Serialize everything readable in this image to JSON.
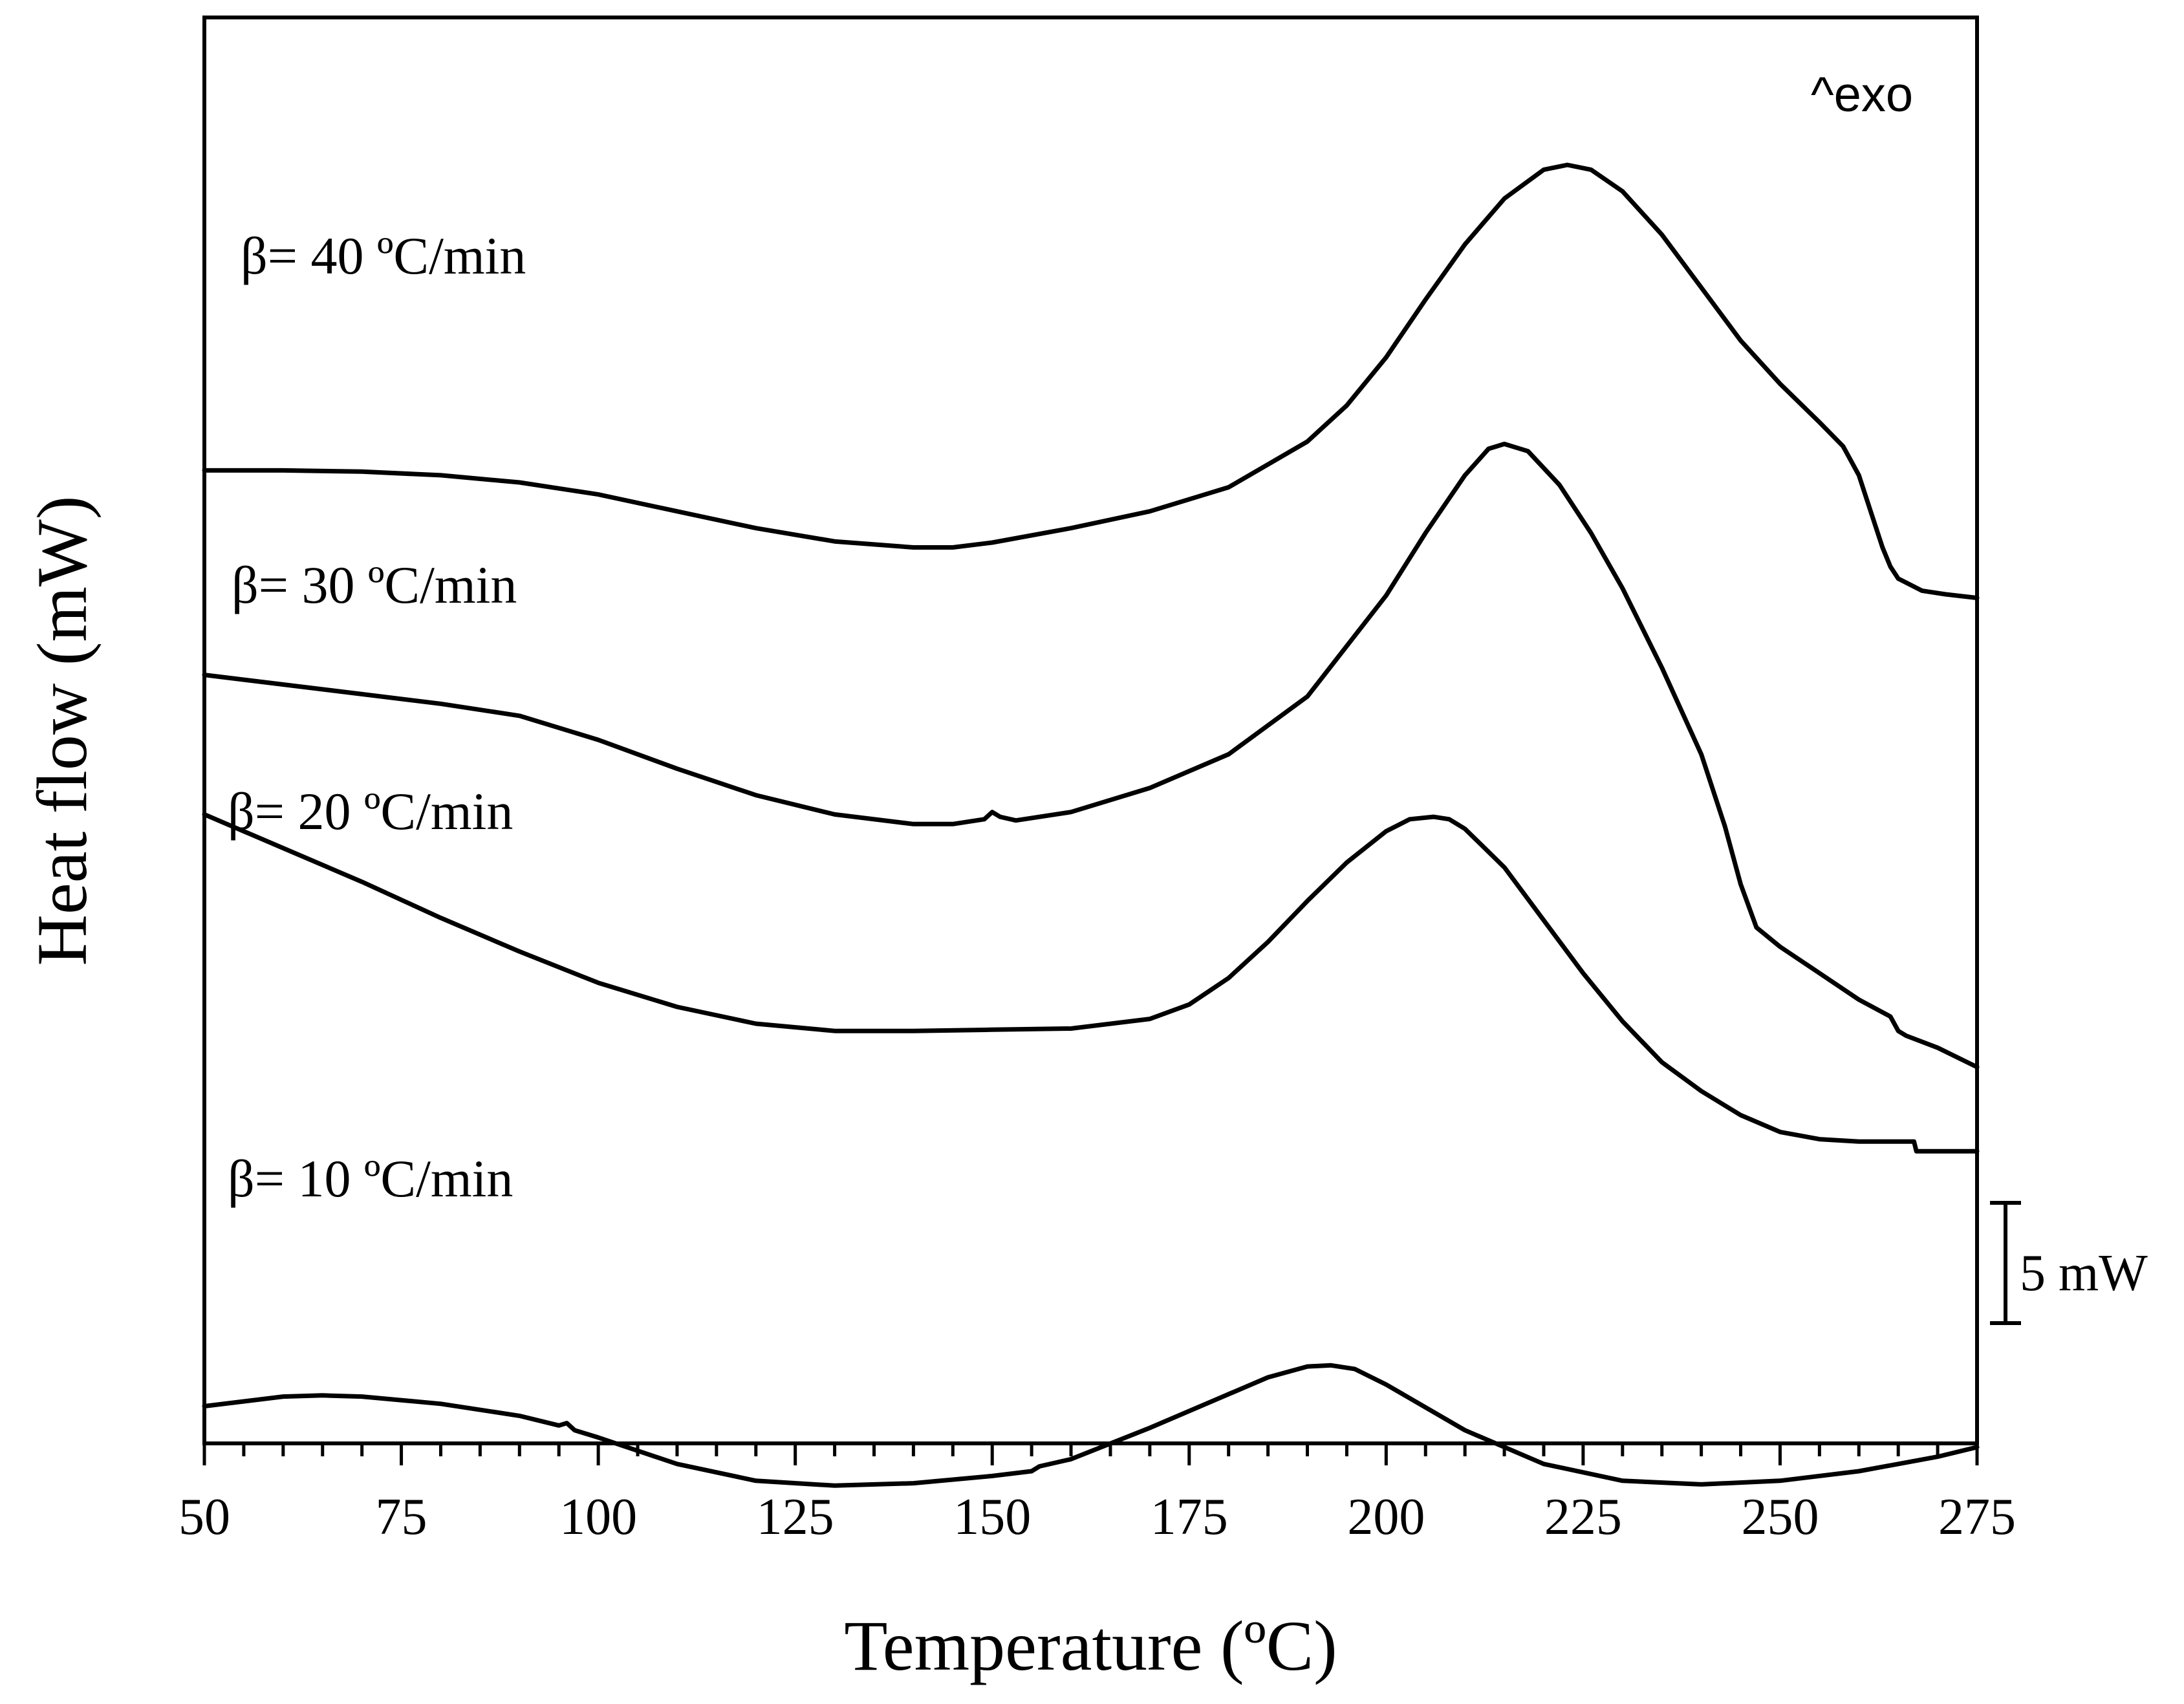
{
  "chart_data": {
    "type": "line",
    "title": "",
    "xlabel": "Temperature (ºC)",
    "ylabel": "Heat flow (mW)",
    "xlim": [
      50,
      275
    ],
    "x_ticks": [
      50,
      75,
      100,
      125,
      150,
      175,
      200,
      225,
      250,
      275
    ],
    "x_minor_step": 5,
    "y_ticks_shown": false,
    "grid": false,
    "annotation": "^exo",
    "scale_bar": {
      "label": "5 mW",
      "value_mW": 5
    },
    "series": [
      {
        "name": "β= 40 ºC/min",
        "label": "β= 40 ºC/min",
        "x": [
          50,
          60,
          70,
          80,
          90,
          100,
          110,
          120,
          130,
          140,
          145,
          150,
          160,
          170,
          180,
          190,
          195,
          200,
          205,
          210,
          215,
          220,
          223,
          226,
          230,
          235,
          240,
          245,
          250,
          255,
          258,
          260,
          261,
          262,
          263,
          264,
          265,
          268,
          271,
          275
        ],
        "y": [
          24.8,
          24.8,
          24.75,
          24.6,
          24.3,
          23.8,
          23.1,
          22.4,
          21.85,
          21.6,
          21.6,
          21.8,
          22.4,
          23.1,
          24.1,
          26.0,
          27.5,
          29.5,
          31.9,
          34.2,
          36.1,
          37.3,
          37.5,
          37.3,
          36.4,
          34.6,
          32.4,
          30.2,
          28.4,
          26.8,
          25.8,
          24.6,
          23.6,
          22.6,
          21.6,
          20.8,
          20.3,
          19.8,
          19.65,
          19.5
        ]
      },
      {
        "name": "β= 30 ºC/min",
        "label": "β= 30 ºC/min",
        "x": [
          50,
          60,
          70,
          80,
          90,
          100,
          110,
          120,
          130,
          140,
          145,
          149,
          150,
          151,
          153,
          160,
          170,
          180,
          190,
          200,
          205,
          210,
          213,
          215,
          218,
          222,
          226,
          230,
          235,
          240,
          243,
          245,
          247,
          250,
          255,
          260,
          264,
          265,
          266,
          270,
          275
        ],
        "y": [
          16.3,
          15.9,
          15.5,
          15.1,
          14.6,
          13.6,
          12.4,
          11.3,
          10.5,
          10.1,
          10.1,
          10.3,
          10.6,
          10.4,
          10.25,
          10.6,
          11.6,
          13.0,
          15.4,
          19.6,
          22.2,
          24.6,
          25.7,
          25.9,
          25.6,
          24.2,
          22.2,
          19.9,
          16.6,
          13.0,
          10.0,
          7.6,
          5.8,
          5.0,
          3.9,
          2.8,
          2.1,
          1.5,
          1.3,
          0.8,
          0.0
        ]
      },
      {
        "name": "β= 20 ºC/min",
        "label": "β= 20 ºC/min",
        "x": [
          50,
          60,
          70,
          80,
          90,
          100,
          110,
          120,
          130,
          140,
          150,
          160,
          170,
          175,
          180,
          185,
          190,
          195,
          200,
          203,
          206,
          208,
          210,
          215,
          220,
          225,
          230,
          235,
          240,
          245,
          250,
          255,
          260,
          265,
          267,
          267.3,
          270,
          275
        ],
        "y": [
          10.5,
          9.1,
          7.7,
          6.2,
          4.8,
          3.5,
          2.5,
          1.8,
          1.5,
          1.5,
          1.55,
          1.6,
          2.0,
          2.6,
          3.7,
          5.2,
          6.9,
          8.5,
          9.8,
          10.3,
          10.4,
          10.3,
          9.9,
          8.3,
          6.1,
          3.9,
          1.9,
          0.2,
          -1.0,
          -2.0,
          -2.7,
          -3.0,
          -3.1,
          -3.1,
          -3.1,
          -3.5,
          -3.5,
          -3.5
        ]
      },
      {
        "name": "β= 10 ºC/min",
        "label": "β= 10 ºC/min",
        "x": [
          50,
          60,
          65,
          70,
          80,
          90,
          95,
          96,
          97,
          100,
          110,
          120,
          130,
          140,
          150,
          155,
          156,
          160,
          170,
          180,
          185,
          190,
          193,
          196,
          200,
          210,
          220,
          230,
          240,
          250,
          260,
          270,
          275
        ],
        "y": [
          -14.1,
          -13.7,
          -13.65,
          -13.7,
          -14.0,
          -14.5,
          -14.9,
          -14.8,
          -15.1,
          -15.4,
          -16.5,
          -17.2,
          -17.4,
          -17.3,
          -17.0,
          -16.8,
          -16.6,
          -16.3,
          -15.0,
          -13.6,
          -12.9,
          -12.45,
          -12.4,
          -12.55,
          -13.2,
          -15.1,
          -16.5,
          -17.2,
          -17.35,
          -17.2,
          -16.8,
          -16.2,
          -15.8
        ]
      }
    ]
  }
}
